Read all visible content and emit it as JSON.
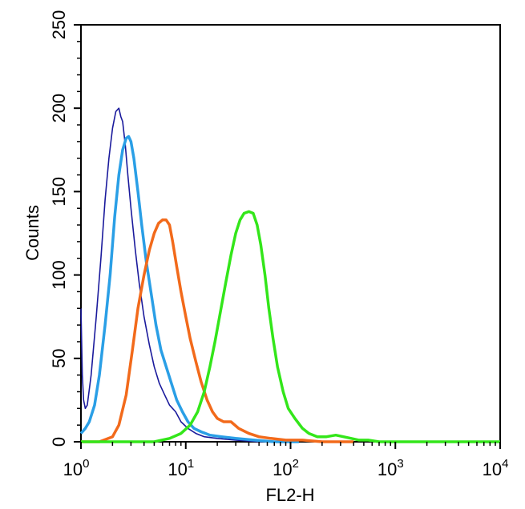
{
  "chart_data": {
    "type": "line",
    "title": "",
    "xlabel": "FL2-H",
    "ylabel": "Counts",
    "xscale": "log",
    "xlim": [
      1,
      10000
    ],
    "ylim": [
      0,
      250
    ],
    "x_ticks": [
      {
        "base": "10",
        "exp": "0"
      },
      {
        "base": "10",
        "exp": "1"
      },
      {
        "base": "10",
        "exp": "2"
      },
      {
        "base": "10",
        "exp": "3"
      },
      {
        "base": "10",
        "exp": "4"
      }
    ],
    "y_ticks": [
      "0",
      "50",
      "100",
      "150",
      "200",
      "250"
    ],
    "grid": false,
    "legend": "none",
    "series": [
      {
        "name": "dark-blue",
        "color": "#1a1a9c",
        "x": [
          1.0,
          1.03,
          1.06,
          1.1,
          1.15,
          1.25,
          1.4,
          1.55,
          1.7,
          1.85,
          2.0,
          2.15,
          2.3,
          2.4,
          2.5,
          2.65,
          2.8,
          3.0,
          3.3,
          3.6,
          4.0,
          4.5,
          5.0,
          5.6,
          6.3,
          7.0,
          8.0,
          9.0,
          10.5,
          12.5,
          15.0,
          20.0,
          30.0,
          50.0,
          100.0
        ],
        "y": [
          80,
          40,
          25,
          20,
          22,
          40,
          75,
          110,
          145,
          170,
          188,
          198,
          200,
          195,
          192,
          178,
          160,
          140,
          115,
          95,
          75,
          58,
          45,
          35,
          28,
          22,
          18,
          12,
          8,
          5,
          3,
          2,
          1,
          0,
          0
        ]
      },
      {
        "name": "light-blue",
        "color": "#2a9fe6",
        "x": [
          1.0,
          1.1,
          1.2,
          1.35,
          1.5,
          1.7,
          1.9,
          2.1,
          2.3,
          2.5,
          2.7,
          2.85,
          3.0,
          3.2,
          3.5,
          3.8,
          4.2,
          4.7,
          5.2,
          5.8,
          6.5,
          7.3,
          8.2,
          9.3,
          10.5,
          12.0,
          14.0,
          17.0,
          22.0,
          30.0,
          45.0,
          70.0,
          120.0
        ],
        "y": [
          5,
          8,
          12,
          22,
          40,
          70,
          100,
          135,
          160,
          175,
          182,
          183,
          180,
          170,
          150,
          130,
          108,
          88,
          70,
          55,
          45,
          35,
          25,
          18,
          12,
          8,
          6,
          4,
          3,
          2,
          1,
          0,
          0
        ]
      },
      {
        "name": "orange",
        "color": "#f26a1b",
        "x": [
          1.0,
          1.5,
          2.0,
          2.3,
          2.7,
          3.1,
          3.5,
          4.0,
          4.5,
          5.0,
          5.5,
          6.0,
          6.5,
          7.0,
          7.5,
          8.2,
          9.0,
          10.0,
          11.0,
          12.5,
          14.0,
          16.0,
          18.0,
          20.0,
          23.0,
          27.0,
          32.0,
          40.0,
          50.0,
          65.0,
          90.0,
          130.0,
          200.0,
          400.0
        ],
        "y": [
          0,
          0,
          3,
          10,
          28,
          55,
          80,
          100,
          115,
          125,
          131,
          133,
          133,
          130,
          120,
          105,
          90,
          75,
          62,
          48,
          36,
          25,
          18,
          14,
          12,
          12,
          8,
          5,
          3,
          2,
          1,
          1,
          0,
          0
        ]
      },
      {
        "name": "green",
        "color": "#33e61a",
        "x": [
          1.0,
          5.0,
          7.0,
          9.0,
          11.0,
          13.0,
          15.0,
          17.0,
          19.0,
          21.0,
          24.0,
          27.0,
          30.0,
          33.0,
          36.0,
          40.0,
          44.0,
          48.0,
          52.0,
          57.0,
          62.0,
          68.0,
          75.0,
          85.0,
          95.0,
          110.0,
          130.0,
          150.0,
          180.0,
          220.0,
          270.0,
          320.0,
          380.0,
          450.0,
          550.0,
          700.0,
          900.0,
          1200.0,
          10000.0
        ],
        "y": [
          0,
          0,
          2,
          5,
          10,
          18,
          30,
          45,
          60,
          75,
          95,
          112,
          125,
          133,
          137,
          138,
          137,
          130,
          118,
          100,
          80,
          62,
          45,
          30,
          20,
          14,
          8,
          5,
          3,
          3,
          4,
          3,
          2,
          1,
          1,
          0,
          0,
          0,
          0
        ]
      }
    ]
  }
}
